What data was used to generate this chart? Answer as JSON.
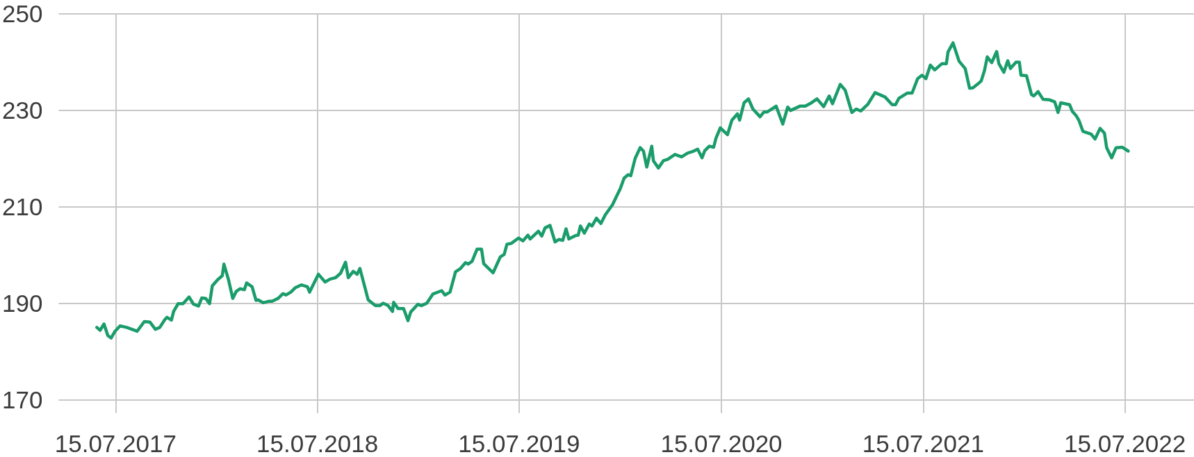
{
  "chart_data": {
    "type": "line",
    "color": "#1a9c6b",
    "marker": "none",
    "line_style": "solid",
    "grid": true,
    "xlim": [
      "2017-04-03",
      "2022-11-17"
    ],
    "xticks": [
      {
        "value": "2017-07-15",
        "label": "15.07.2017"
      },
      {
        "value": "2018-07-15",
        "label": "15.07.2018"
      },
      {
        "value": "2019-07-15",
        "label": "15.07.2019"
      },
      {
        "value": "2020-07-15",
        "label": "15.07.2020"
      },
      {
        "value": "2021-07-15",
        "label": "15.07.2021"
      },
      {
        "value": "2022-07-15",
        "label": "15.07.2022"
      }
    ],
    "ylim": [
      170,
      250
    ],
    "yticks": [
      170,
      190,
      210,
      230,
      250
    ],
    "x": [
      "2017-06-11",
      "2017-06-17",
      "2017-06-24",
      "2017-07-01",
      "2017-07-07",
      "2017-07-14",
      "2017-07-23",
      "2017-08-04",
      "2017-08-23",
      "2017-09-05",
      "2017-09-15",
      "2017-09-25",
      "2017-10-03",
      "2017-10-12",
      "2017-10-16",
      "2017-10-24",
      "2017-10-28",
      "2017-11-05",
      "2017-11-14",
      "2017-11-25",
      "2017-12-03",
      "2017-12-12",
      "2017-12-18",
      "2017-12-25",
      "2018-01-01",
      "2018-01-06",
      "2018-01-16",
      "2018-01-24",
      "2018-01-27",
      "2018-02-04",
      "2018-02-12",
      "2018-02-18",
      "2018-02-25",
      "2018-03-05",
      "2018-03-09",
      "2018-03-19",
      "2018-03-26",
      "2018-03-30",
      "2018-04-08",
      "2018-04-18",
      "2018-04-24",
      "2018-05-05",
      "2018-05-14",
      "2018-05-19",
      "2018-05-28",
      "2018-06-05",
      "2018-06-16",
      "2018-06-27",
      "2018-07-01",
      "2018-07-17",
      "2018-07-29",
      "2018-08-07",
      "2018-08-17",
      "2018-08-26",
      "2018-09-04",
      "2018-09-09",
      "2018-09-18",
      "2018-09-25",
      "2018-09-30",
      "2018-10-15",
      "2018-10-28",
      "2018-11-05",
      "2018-11-11",
      "2018-11-20",
      "2018-11-28",
      "2018-11-30",
      "2018-12-08",
      "2018-12-18",
      "2018-12-26",
      "2018-12-31",
      "2019-01-13",
      "2019-01-19",
      "2019-01-29",
      "2019-02-09",
      "2019-02-25",
      "2019-03-03",
      "2019-03-12",
      "2019-03-22",
      "2019-03-31",
      "2019-04-09",
      "2019-04-14",
      "2019-04-21",
      "2019-04-30",
      "2019-05-08",
      "2019-05-12",
      "2019-05-29",
      "2019-06-11",
      "2019-06-18",
      "2019-06-23",
      "2019-07-01",
      "2019-07-14",
      "2019-07-22",
      "2019-07-31",
      "2019-08-04",
      "2019-08-19",
      "2019-08-25",
      "2019-08-31",
      "2019-09-09",
      "2019-09-18",
      "2019-09-25",
      "2019-10-02",
      "2019-10-08",
      "2019-10-13",
      "2019-10-25",
      "2019-10-30",
      "2019-11-03",
      "2019-11-10",
      "2019-11-19",
      "2019-11-24",
      "2019-12-02",
      "2019-12-10",
      "2019-12-18",
      "2019-12-31",
      "2020-01-08",
      "2020-01-14",
      "2020-01-21",
      "2020-01-28",
      "2020-02-02",
      "2020-02-10",
      "2020-02-19",
      "2020-02-25",
      "2020-03-02",
      "2020-03-11",
      "2020-03-14",
      "2020-03-23",
      "2020-04-01",
      "2020-04-09",
      "2020-04-22",
      "2020-05-04",
      "2020-05-15",
      "2020-05-24",
      "2020-06-02",
      "2020-06-10",
      "2020-06-15",
      "2020-06-23",
      "2020-07-01",
      "2020-07-05",
      "2020-07-13",
      "2020-07-26",
      "2020-08-03",
      "2020-08-13",
      "2020-08-17",
      "2020-08-25",
      "2020-09-02",
      "2020-09-10",
      "2020-09-23",
      "2020-09-30",
      "2020-10-06",
      "2020-10-22",
      "2020-11-03",
      "2020-11-12",
      "2020-11-17",
      "2020-12-04",
      "2020-12-14",
      "2020-12-25",
      "2021-01-04",
      "2021-01-16",
      "2021-01-26",
      "2021-02-01",
      "2021-02-15",
      "2021-02-24",
      "2021-03-08",
      "2021-03-16",
      "2021-03-24",
      "2021-04-06",
      "2021-04-19",
      "2021-05-07",
      "2021-05-20",
      "2021-05-26",
      "2021-06-01",
      "2021-06-16",
      "2021-06-25",
      "2021-07-05",
      "2021-07-13",
      "2021-07-20",
      "2021-07-28",
      "2021-08-05",
      "2021-08-18",
      "2021-08-26",
      "2021-08-29",
      "2021-09-07",
      "2021-09-18",
      "2021-09-29",
      "2021-10-07",
      "2021-10-13",
      "2021-10-22",
      "2021-10-28",
      "2021-11-03",
      "2021-11-08",
      "2021-11-16",
      "2021-11-25",
      "2021-11-29",
      "2021-12-08",
      "2021-12-15",
      "2021-12-20",
      "2021-12-30",
      "2022-01-05",
      "2022-01-08",
      "2022-01-18",
      "2022-01-27",
      "2022-01-31",
      "2022-02-08",
      "2022-02-17",
      "2022-03-01",
      "2022-03-10",
      "2022-03-16",
      "2022-03-21",
      "2022-04-06",
      "2022-04-11",
      "2022-04-18",
      "2022-04-23",
      "2022-04-30",
      "2022-05-15",
      "2022-05-22",
      "2022-05-31",
      "2022-06-08",
      "2022-06-12",
      "2022-06-21",
      "2022-06-29",
      "2022-07-10",
      "2022-07-21"
    ],
    "values": [
      185.0,
      184.4,
      185.7,
      183.3,
      182.8,
      184.2,
      185.3,
      185.0,
      184.2,
      186.2,
      186.1,
      184.6,
      185.0,
      186.6,
      187.1,
      186.5,
      188.3,
      189.9,
      189.9,
      191.3,
      189.8,
      189.4,
      191.1,
      191.0,
      189.9,
      193.6,
      194.9,
      195.7,
      198.1,
      195.0,
      191.0,
      192.4,
      193.0,
      192.8,
      194.2,
      193.4,
      190.6,
      190.7,
      190.1,
      190.4,
      190.4,
      191.0,
      192.0,
      191.7,
      192.3,
      193.2,
      193.8,
      193.4,
      192.3,
      196.0,
      194.4,
      195.0,
      195.3,
      196.2,
      198.5,
      195.3,
      196.6,
      196.0,
      197.2,
      190.7,
      189.5,
      189.5,
      190.0,
      189.5,
      188.3,
      190.2,
      188.9,
      188.9,
      186.4,
      188.2,
      189.8,
      189.5,
      190.0,
      191.9,
      192.6,
      191.7,
      192.3,
      196.5,
      197.2,
      198.4,
      198.1,
      198.7,
      201.2,
      201.2,
      198.2,
      196.3,
      199.6,
      200.1,
      202.2,
      202.4,
      203.5,
      202.9,
      204.1,
      203.3,
      204.9,
      203.9,
      205.6,
      206.1,
      202.7,
      203.2,
      203.0,
      205.4,
      203.3,
      204.0,
      204.1,
      206.0,
      204.5,
      206.4,
      206.0,
      207.6,
      206.5,
      208.3,
      210.4,
      212.3,
      213.7,
      215.9,
      216.6,
      216.4,
      220.0,
      222.2,
      221.5,
      218.2,
      222.5,
      219.5,
      218.0,
      219.5,
      219.8,
      220.8,
      220.3,
      221.1,
      221.4,
      221.9,
      220.1,
      221.6,
      222.5,
      222.3,
      224.1,
      226.3,
      224.9,
      227.9,
      229.2,
      227.9,
      231.5,
      232.3,
      230.2,
      228.6,
      229.6,
      229.6,
      230.8,
      227.1,
      230.6,
      229.9,
      230.8,
      230.8,
      231.5,
      232.3,
      230.7,
      232.9,
      231.3,
      235.3,
      234.1,
      229.5,
      230.2,
      229.8,
      231.2,
      233.6,
      232.7,
      231.1,
      231.1,
      232.4,
      233.5,
      233.5,
      236.5,
      237.2,
      236.5,
      239.3,
      238.3,
      239.6,
      239.6,
      242.0,
      243.9,
      240.1,
      238.6,
      234.5,
      234.6,
      235.4,
      236.0,
      238.2,
      241.0,
      239.8,
      242.1,
      239.6,
      237.8,
      240.2,
      238.6,
      239.9,
      239.9,
      237.2,
      237.1,
      233.2,
      232.9,
      233.8,
      232.2,
      232.1,
      231.7,
      229.5,
      231.5,
      231.1,
      229.7,
      228.8,
      227.8,
      225.6,
      225.0,
      224.0,
      226.2,
      225.2,
      222.2,
      220.1,
      222.2,
      222.3,
      221.5
    ]
  }
}
